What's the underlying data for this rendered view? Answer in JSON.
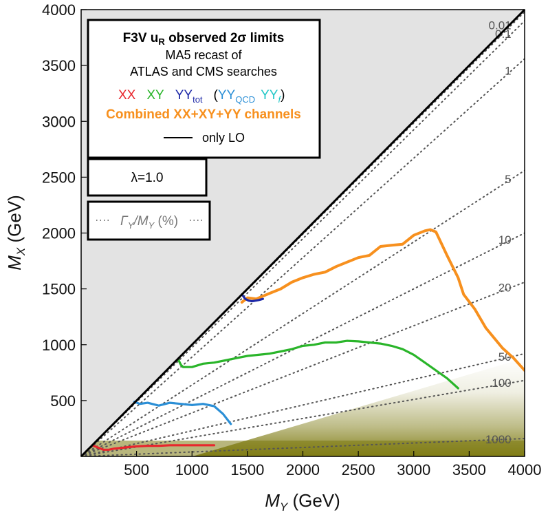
{
  "chart_data": {
    "type": "line",
    "xlabel": {
      "var": "M",
      "sub": "Y",
      "unit": " (GeV)"
    },
    "ylabel": {
      "var": "M",
      "sub": "X",
      "unit": " (GeV)"
    },
    "xlim": [
      0,
      4000
    ],
    "ylim": [
      0,
      4000
    ],
    "xticks": [
      500,
      1000,
      1500,
      2000,
      2500,
      3000,
      3500,
      4000
    ],
    "yticks": [
      500,
      1000,
      1500,
      2000,
      2500,
      3000,
      3500,
      4000
    ],
    "legend": {
      "title": "F3V u",
      "title_sub": "R",
      "title_rest": " observed 2σ limits",
      "line2": "MA5 recast of",
      "line3": "ATLAS and CMS searches",
      "xx": "XX",
      "xy": "XY",
      "yy": "YY",
      "yy_sub": "tot",
      "open_paren": "(",
      "yyqcd": "YY",
      "yyqcd_sub": "QCD",
      "yyf": "YY",
      "yyf_sub": "f",
      "close_paren": ")",
      "combined": "Combined XX+XY+YY channels",
      "lo": "only LO"
    },
    "lambda_label": "λ=1.0",
    "width_legend": {
      "sym": "Γ",
      "sub1": "Y",
      "mid": "/M",
      "sub2": "Y",
      "rest": " (%)"
    },
    "colors": {
      "xx": "#e8262d",
      "xy": "#2ab52a",
      "yy": "#1f2aa8",
      "yyqcd": "#2b8fd6",
      "yyf": "#22c7c7",
      "combined": "#f7901e",
      "excluded": "#e3e3e3",
      "shade": "#7d7a10"
    },
    "width_contours": [
      {
        "label": "0.01",
        "slope": 0.995
      },
      {
        "label": "0.1",
        "slope": 0.975
      },
      {
        "label": "1",
        "slope": 0.89
      },
      {
        "label": "5",
        "slope": 0.64
      },
      {
        "label": "10",
        "slope": 0.5
      },
      {
        "label": "20",
        "slope": 0.39
      },
      {
        "label": "50",
        "slope": 0.23
      },
      {
        "label": "100",
        "slope": 0.17
      },
      {
        "label": "1000",
        "slope": 0.04
      }
    ],
    "series": [
      {
        "key": "combined",
        "x": [
          1450,
          1500,
          1580,
          1700,
          1800,
          1900,
          2000,
          2100,
          2200,
          2300,
          2400,
          2500,
          2600,
          2700,
          2800,
          2900,
          3000,
          3100,
          3150,
          3200,
          3300,
          3400,
          3450,
          3550,
          3650,
          3800,
          3900,
          4000
        ],
        "y": [
          1380,
          1420,
          1410,
          1460,
          1500,
          1560,
          1600,
          1630,
          1650,
          1700,
          1740,
          1780,
          1800,
          1880,
          1890,
          1900,
          1980,
          2020,
          2030,
          2010,
          1800,
          1600,
          1450,
          1320,
          1150,
          970,
          880,
          770
        ]
      },
      {
        "key": "yy",
        "x": [
          1450,
          1480,
          1510,
          1540,
          1560,
          1600,
          1640
        ],
        "y": [
          1450,
          1410,
          1395,
          1390,
          1392,
          1400,
          1410
        ]
      },
      {
        "key": "xy",
        "x": [
          880,
          900,
          920,
          1000,
          1100,
          1200,
          1300,
          1400,
          1500,
          1600,
          1700,
          1800,
          1900,
          2000,
          2100,
          2200,
          2300,
          2400,
          2500,
          2600,
          2700,
          2800,
          2900,
          3000,
          3100,
          3200,
          3300,
          3400
        ],
        "y": [
          860,
          820,
          800,
          800,
          830,
          840,
          860,
          880,
          900,
          910,
          920,
          940,
          960,
          990,
          1000,
          1020,
          1020,
          1035,
          1030,
          1020,
          1010,
          990,
          960,
          910,
          840,
          770,
          700,
          610
        ]
      },
      {
        "key": "yyqcd",
        "x": [
          480,
          530,
          600,
          700,
          800,
          900,
          1000,
          1100,
          1200,
          1280,
          1350
        ],
        "y": [
          490,
          470,
          480,
          455,
          480,
          470,
          460,
          470,
          450,
          380,
          290
        ]
      },
      {
        "key": "xx",
        "x": [
          100,
          150,
          200,
          250,
          300,
          400,
          500,
          600,
          700,
          800,
          900,
          1000,
          1100,
          1200
        ],
        "y": [
          100,
          80,
          60,
          60,
          70,
          80,
          90,
          95,
          95,
          100,
          100,
          100,
          100,
          100
        ]
      }
    ]
  }
}
